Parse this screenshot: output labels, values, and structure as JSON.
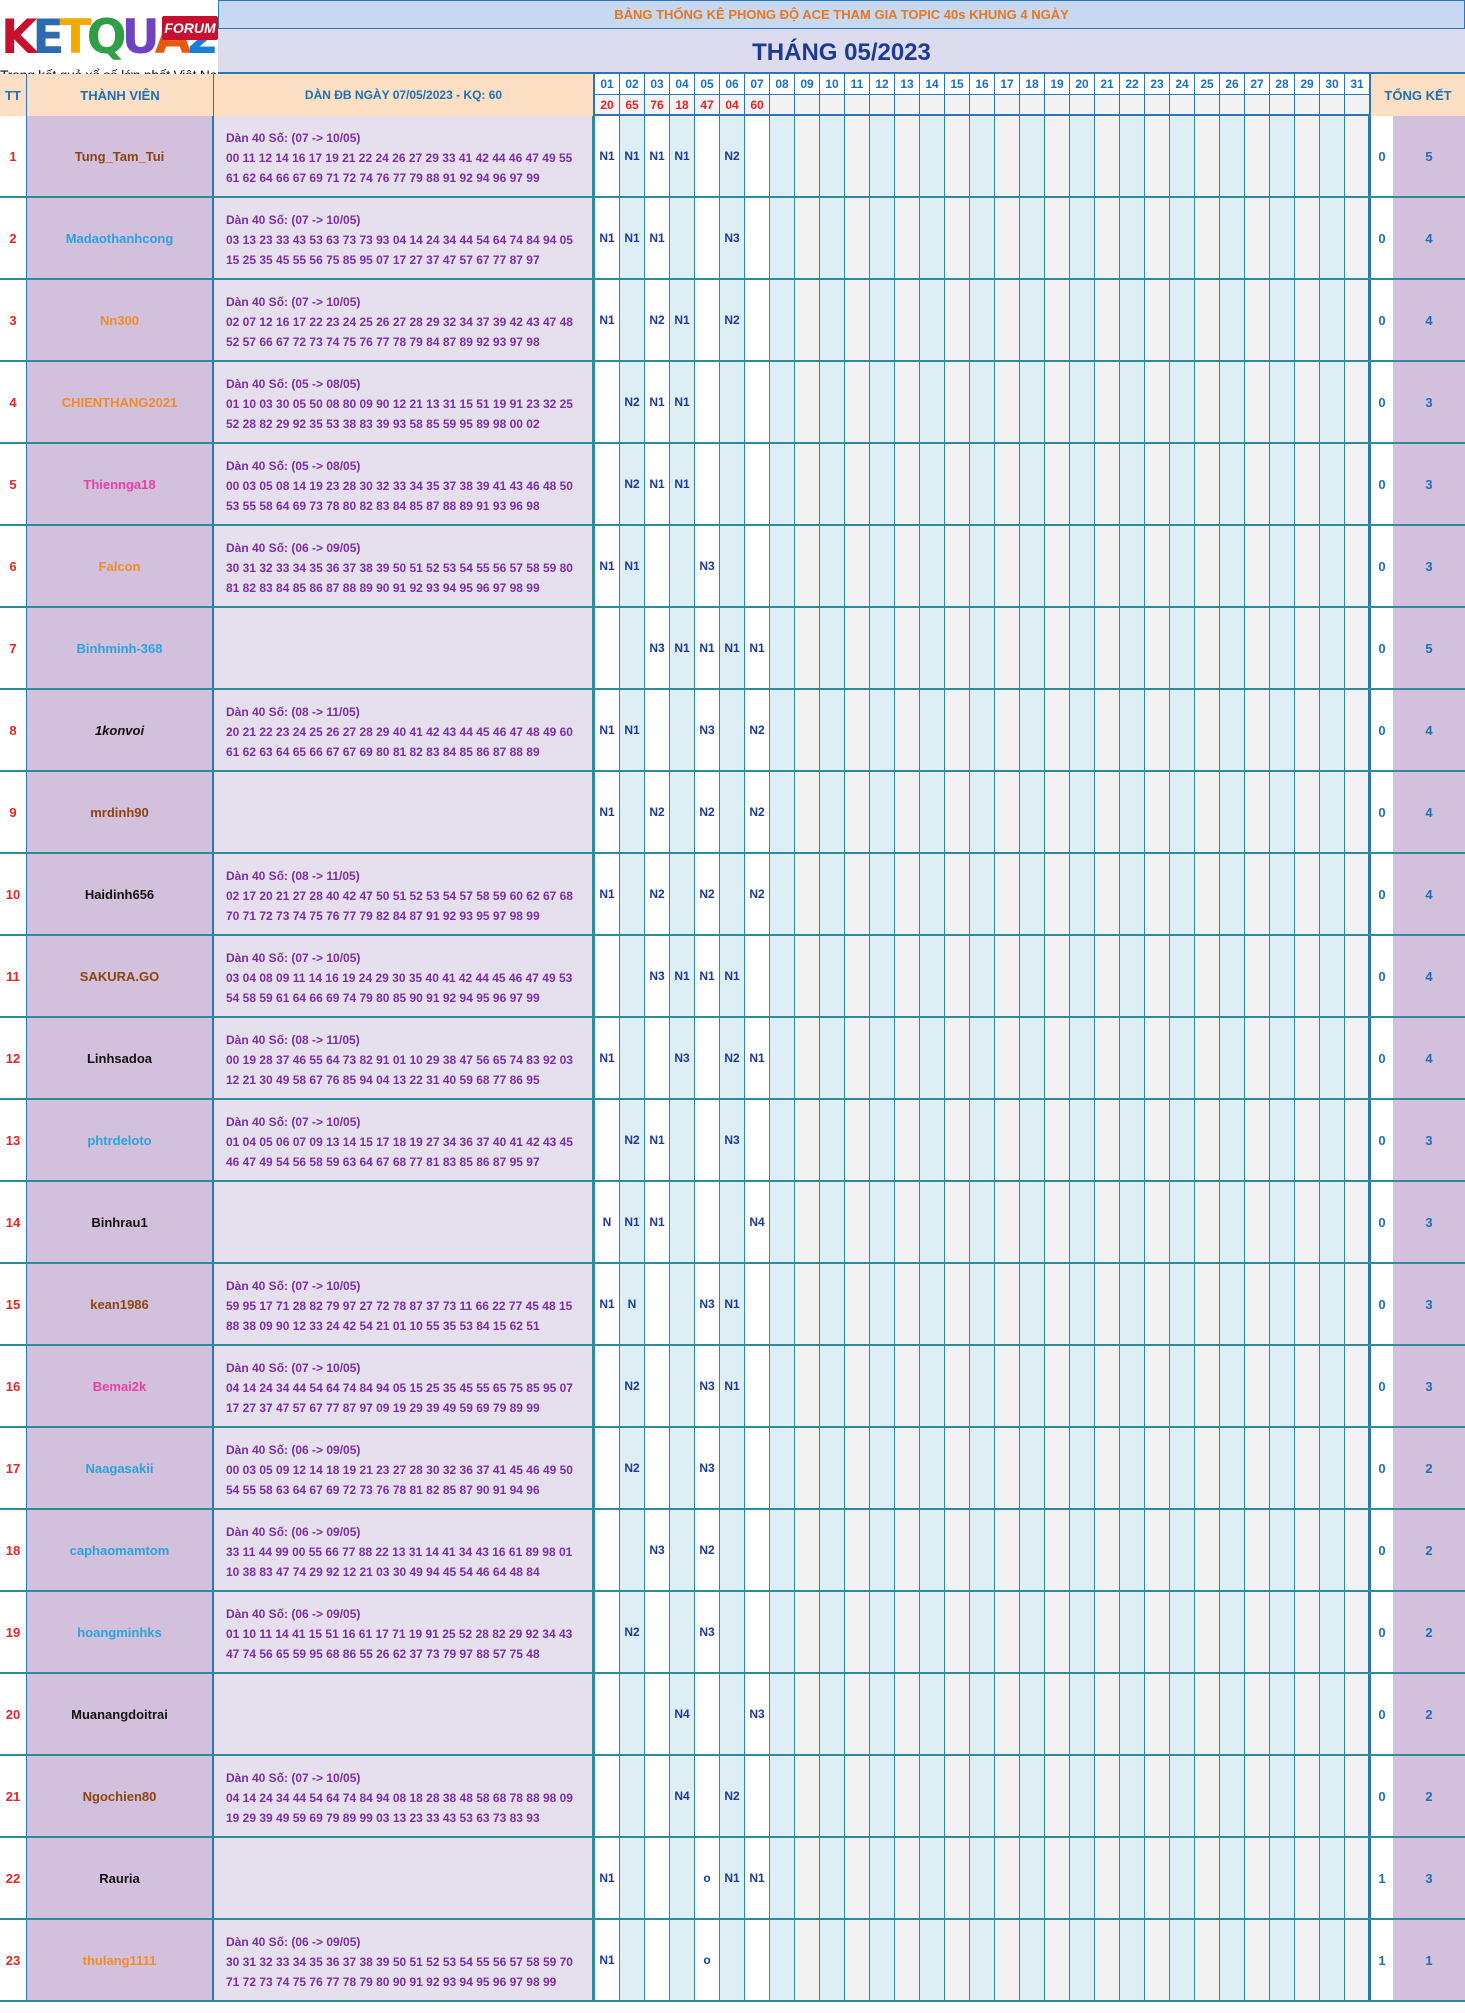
{
  "logo": {
    "letters": [
      "K",
      "E",
      "T",
      "Q",
      "U",
      "A",
      "2"
    ],
    "letter_colors": [
      "#c8102e",
      "#2b6cb0",
      "#f2a900",
      "#2f9e44",
      "#6f42c1",
      "#e8590c",
      "#1c7ed6"
    ],
    "forum": "FORUM",
    "tagline": "Trang kết quả xổ số lớn nhất Việt Nam"
  },
  "banner": "BẢNG THỐNG KÊ PHONG ĐỘ ACE THAM GIA TOPIC 40s KHUNG 4 NGÀY",
  "month_title": "THÁNG 05/2023",
  "headers": {
    "tt": "TT",
    "member": "THÀNH VIÊN",
    "dan": "DÀN ĐB NGÀY 07/05/2023 - KQ: 60",
    "total": "TỔNG KẾT"
  },
  "days": [
    "01",
    "02",
    "03",
    "04",
    "05",
    "06",
    "07",
    "08",
    "09",
    "10",
    "11",
    "12",
    "13",
    "14",
    "15",
    "16",
    "17",
    "18",
    "19",
    "20",
    "21",
    "22",
    "23",
    "24",
    "25",
    "26",
    "27",
    "28",
    "29",
    "30",
    "31"
  ],
  "results": [
    "20",
    "65",
    "76",
    "18",
    "47",
    "04",
    "60"
  ],
  "rows": [
    {
      "tt": "1",
      "name": "Tung_Tam_Tui",
      "color": "#8b4513",
      "italic": false,
      "dan_title": "Dàn 40 Số: (07 -> 10/05)",
      "dan_l1": "00 11 12 14 16 17 19 21 22 24 26 27 29 33 41 42 44 46 47 49 55",
      "dan_l2": "61 62 64 66 67 69 71 72 74 76 77 79 88 91 92 94 96 97 99",
      "marks": [
        "N1",
        "N1",
        "N1",
        "N1",
        "",
        "N2",
        ""
      ],
      "s1": "0",
      "s2": "5"
    },
    {
      "tt": "2",
      "name": "Madaothanhcong",
      "color": "#29a3e0",
      "italic": false,
      "dan_title": "Dàn 40 Số: (07 -> 10/05)",
      "dan_l1": "03 13 23 33 43 53 63 73 73 93 04 14 24 34 44 54 64 74 84 94 05",
      "dan_l2": "15 25 35 45 55 56 75 85 95 07 17 27 37 47 57 67 77 87 97",
      "marks": [
        "N1",
        "N1",
        "N1",
        "",
        "",
        "N3",
        ""
      ],
      "s1": "0",
      "s2": "4"
    },
    {
      "tt": "3",
      "name": "Nn300",
      "color": "#f28c28",
      "italic": false,
      "dan_title": "Dàn 40 Số: (07 -> 10/05)",
      "dan_l1": "02 07 12 16 17 22 23 24 25 26 27 28 29 32 34 37 39 42 43 47 48",
      "dan_l2": "52 57 66 67 72 73 74 75 76 77 78 79 84 87 89 92 93 97 98",
      "marks": [
        "N1",
        "",
        "N2",
        "N1",
        "",
        "N2",
        ""
      ],
      "s1": "0",
      "s2": "4"
    },
    {
      "tt": "4",
      "name": "CHIENTHANG2021",
      "color": "#f28c28",
      "italic": false,
      "dan_title": "Dàn 40 Số: (05 -> 08/05)",
      "dan_l1": "01 10 03 30 05 50 08 80 09 90 12 21 13 31 15 51 19 91 23 32 25",
      "dan_l2": "52 28 82 29 92 35 53 38 83 39 93 58 85 59 95 89 98 00 02",
      "marks": [
        "",
        "N2",
        "N1",
        "N1",
        "",
        "",
        ""
      ],
      "s1": "0",
      "s2": "3"
    },
    {
      "tt": "5",
      "name": "Thiennga18",
      "color": "#e83ea8",
      "italic": false,
      "dan_title": "Dàn 40 Số: (05 -> 08/05)",
      "dan_l1": "00 03 05 08 14 19 23 28 30 32 33 34 35 37 38 39 41 43 46 48 50",
      "dan_l2": "53 55 58 64 69 73 78 80 82 83 84 85 87 88 89 91 93 96 98",
      "marks": [
        "",
        "N2",
        "N1",
        "N1",
        "",
        "",
        ""
      ],
      "s1": "0",
      "s2": "3"
    },
    {
      "tt": "6",
      "name": "Falcon",
      "color": "#f28c28",
      "italic": false,
      "dan_title": "Dàn 40 Số: (06 -> 09/05)",
      "dan_l1": "30 31 32 33 34 35 36 37 38 39 50 51 52 53 54 55 56 57 58 59 80",
      "dan_l2": "81 82 83 84 85 86 87 88 89 90 91 92 93 94 95 96 97 98 99",
      "marks": [
        "N1",
        "N1",
        "",
        "",
        "N3",
        "",
        ""
      ],
      "s1": "0",
      "s2": "3"
    },
    {
      "tt": "7",
      "name": "Binhminh-368",
      "color": "#29a3e0",
      "italic": false,
      "dan_title": "",
      "dan_l1": "",
      "dan_l2": "",
      "marks": [
        "",
        "",
        "N3",
        "N1",
        "N1",
        "N1",
        "N1"
      ],
      "s1": "0",
      "s2": "5"
    },
    {
      "tt": "8",
      "name": "1konvoi",
      "color": "#111111",
      "italic": true,
      "dan_title": "Dàn 40 Số: (08 -> 11/05)",
      "dan_l1": "20 21 22 23 24 25 26 27 28 29 40 41 42 43 44 45 46 47 48 49 60",
      "dan_l2": "61 62 63 64 65 66 67 67 69 80 81 82 83 84 85 86 87 88 89",
      "marks": [
        "N1",
        "N1",
        "",
        "",
        "N3",
        "",
        "N2"
      ],
      "s1": "0",
      "s2": "4"
    },
    {
      "tt": "9",
      "name": "mrdinh90",
      "color": "#8b4513",
      "italic": false,
      "dan_title": "",
      "dan_l1": "",
      "dan_l2": "",
      "marks": [
        "N1",
        "",
        "N2",
        "",
        "N2",
        "",
        "N2"
      ],
      "s1": "0",
      "s2": "4"
    },
    {
      "tt": "10",
      "name": "Haidinh656",
      "color": "#111111",
      "italic": false,
      "dan_title": "Dàn 40 Số: (08 -> 11/05)",
      "dan_l1": "02 17 20 21 27 28 40 42 47 50 51 52 53 54 57 58 59 60 62 67 68",
      "dan_l2": "70 71 72 73 74 75 76 77 79 82 84 87 91 92 93 95 97 98 99",
      "marks": [
        "N1",
        "",
        "N2",
        "",
        "N2",
        "",
        "N2"
      ],
      "s1": "0",
      "s2": "4"
    },
    {
      "tt": "11",
      "name": "SAKURA.GO",
      "color": "#8b4513",
      "italic": false,
      "dan_title": "Dàn 40 Số: (07 -> 10/05)",
      "dan_l1": "03 04 08 09 11 14 16 19 24 29 30 35 40 41 42 44 45 46 47 49 53",
      "dan_l2": "54 58 59 61 64 66 69 74 79 80 85 90 91 92 94 95 96 97 99",
      "marks": [
        "",
        "",
        "N3",
        "N1",
        "N1",
        "N1",
        ""
      ],
      "s1": "0",
      "s2": "4"
    },
    {
      "tt": "12",
      "name": "Linhsadoa",
      "color": "#111111",
      "italic": false,
      "dan_title": "Dàn 40 Số: (08 -> 11/05)",
      "dan_l1": "00 19 28 37 46 55 64 73 82 91 01 10 29 38 47 56 65 74 83 92 03",
      "dan_l2": "12 21 30 49 58 67 76 85 94 04 13 22 31 40 59 68 77 86 95",
      "marks": [
        "N1",
        "",
        "",
        "N3",
        "",
        "N2",
        "N1"
      ],
      "s1": "0",
      "s2": "4"
    },
    {
      "tt": "13",
      "name": "phtrdeloto",
      "color": "#29a3e0",
      "italic": false,
      "dan_title": "Dàn 40 Số: (07 -> 10/05)",
      "dan_l1": "01 04 05 06 07 09 13 14 15 17 18 19 27 34 36 37 40 41 42 43 45",
      "dan_l2": "46 47 49 54 56 58 59 63 64 67 68 77 81 83 85 86 87 95 97",
      "marks": [
        "",
        "N2",
        "N1",
        "",
        "",
        "N3",
        ""
      ],
      "s1": "0",
      "s2": "3"
    },
    {
      "tt": "14",
      "name": "Binhrau1",
      "color": "#111111",
      "italic": false,
      "dan_title": "",
      "dan_l1": "",
      "dan_l2": "",
      "marks": [
        "N",
        "N1",
        "N1",
        "",
        "",
        "",
        "N4"
      ],
      "s1": "0",
      "s2": "3"
    },
    {
      "tt": "15",
      "name": "kean1986",
      "color": "#8b4513",
      "italic": false,
      "dan_title": "Dàn 40 Số: (07 -> 10/05)",
      "dan_l1": "59 95 17 71 28 82 79 97 27 72 78 87 37 73 11 66 22 77 45 48 15",
      "dan_l2": "88 38 09 90 12 33 24 42 54 21 01 10 55 35 53 84 15 62 51",
      "marks": [
        "N1",
        "N",
        "",
        "",
        "N3",
        "N1",
        ""
      ],
      "s1": "0",
      "s2": "3"
    },
    {
      "tt": "16",
      "name": "Bemai2k",
      "color": "#e83ea8",
      "italic": false,
      "dan_title": "Dàn 40 Số: (07 -> 10/05)",
      "dan_l1": "04 14 24 34 44 54 64 74 84 94 05 15 25 35 45 55 65 75 85 95 07",
      "dan_l2": "17 27 37 47 57 67 77 87 97 09 19 29 39 49 59 69 79 89 99",
      "marks": [
        "",
        "N2",
        "",
        "",
        "N3",
        "N1",
        ""
      ],
      "s1": "0",
      "s2": "3"
    },
    {
      "tt": "17",
      "name": "Naagasakii",
      "color": "#29a3e0",
      "italic": false,
      "dan_title": "Dàn 40 Số: (06 -> 09/05)",
      "dan_l1": "00 03 05 09 12 14 18 19 21 23 27 28 30 32 36 37 41 45 46 49 50",
      "dan_l2": "54 55 58 63 64 67 69 72 73 76 78 81 82 85 87 90 91 94 96",
      "marks": [
        "",
        "N2",
        "",
        "",
        "N3",
        "",
        ""
      ],
      "s1": "0",
      "s2": "2"
    },
    {
      "tt": "18",
      "name": "caphaomamtom",
      "color": "#29a3e0",
      "italic": false,
      "dan_title": "Dàn 40 Số: (06 -> 09/05)",
      "dan_l1": "33 11 44 99 00 55 66 77 88 22 13 31 14 41 34 43 16 61 89 98 01",
      "dan_l2": "10 38 83 47 74 29 92 12 21 03 30 49 94 45 54 46 64 48 84",
      "marks": [
        "",
        "",
        "N3",
        "",
        "N2",
        "",
        ""
      ],
      "s1": "0",
      "s2": "2"
    },
    {
      "tt": "19",
      "name": "hoangminhks",
      "color": "#29a3e0",
      "italic": false,
      "dan_title": "Dàn 40 Số: (06 -> 09/05)",
      "dan_l1": "01 10 11 14 41 15 51 16 61 17 71 19 91 25 52 28 82 29 92 34 43",
      "dan_l2": "47 74 56 65 59 95 68 86 55 26 62 37 73 79 97 88 57 75 48",
      "marks": [
        "",
        "N2",
        "",
        "",
        "N3",
        "",
        ""
      ],
      "s1": "0",
      "s2": "2"
    },
    {
      "tt": "20",
      "name": "Muanangdoitrai",
      "color": "#111111",
      "italic": false,
      "dan_title": "",
      "dan_l1": "",
      "dan_l2": "",
      "marks": [
        "",
        "",
        "",
        "N4",
        "",
        "",
        "N3"
      ],
      "s1": "0",
      "s2": "2"
    },
    {
      "tt": "21",
      "name": "Ngochien80",
      "color": "#8b4513",
      "italic": false,
      "dan_title": "Dàn 40 Số: (07 -> 10/05)",
      "dan_l1": "04 14 24 34 44 54 64 74 84 94 08 18 28 38 48 58 68 78 88 98 09",
      "dan_l2": "19 29 39 49 59 69 79 89 99 03 13 23 33 43 53 63 73 83 93",
      "marks": [
        "",
        "",
        "",
        "N4",
        "",
        "N2",
        ""
      ],
      "s1": "0",
      "s2": "2"
    },
    {
      "tt": "22",
      "name": "Rauria",
      "color": "#111111",
      "italic": false,
      "dan_title": "",
      "dan_l1": "",
      "dan_l2": "",
      "marks": [
        "N1",
        "",
        "",
        "",
        "o",
        "N1",
        "N1"
      ],
      "s1": "1",
      "s2": "3"
    },
    {
      "tt": "23",
      "name": "thulang1111",
      "color": "#f28c28",
      "italic": false,
      "dan_title": "Dàn 40 Số: (06 -> 09/05)",
      "dan_l1": "30 31 32 33 34 35 36 37 38 39 50 51 52 53 54 55 56 57 58 59 70",
      "dan_l2": "71 72 73 74 75 76 77 78 79 80 90 91 92 93 94 95 96 97 98 99",
      "marks": [
        "N1",
        "",
        "",
        "",
        "o",
        "",
        ""
      ],
      "s1": "1",
      "s2": "1"
    }
  ]
}
